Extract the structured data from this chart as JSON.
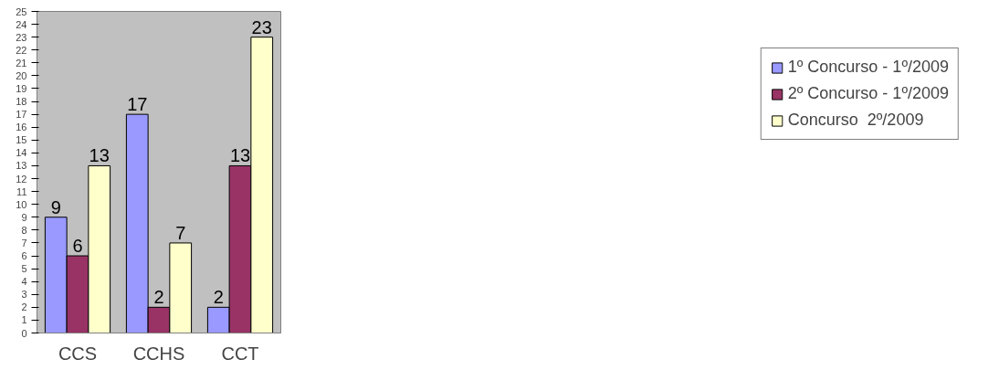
{
  "chart_data": {
    "type": "bar",
    "categories": [
      "CCS",
      "CCHS",
      "CCT"
    ],
    "series": [
      {
        "name": "1º Concurso - 1º/2009",
        "color": "#9999ff",
        "values": [
          9,
          17,
          2
        ]
      },
      {
        "name": "2º Concurso - 1º/2009",
        "color": "#993366",
        "values": [
          6,
          2,
          13
        ]
      },
      {
        "name": "Concurso  2º/2009",
        "color": "#ffffcc",
        "values": [
          13,
          7,
          23
        ]
      }
    ],
    "ylim": [
      0,
      25
    ],
    "yticks": [
      0,
      1,
      2,
      3,
      4,
      5,
      6,
      7,
      8,
      9,
      10,
      11,
      12,
      13,
      14,
      15,
      16,
      17,
      18,
      19,
      20,
      21,
      22,
      23,
      24,
      25
    ],
    "grid": false,
    "legend": "right",
    "data_labels": true
  }
}
